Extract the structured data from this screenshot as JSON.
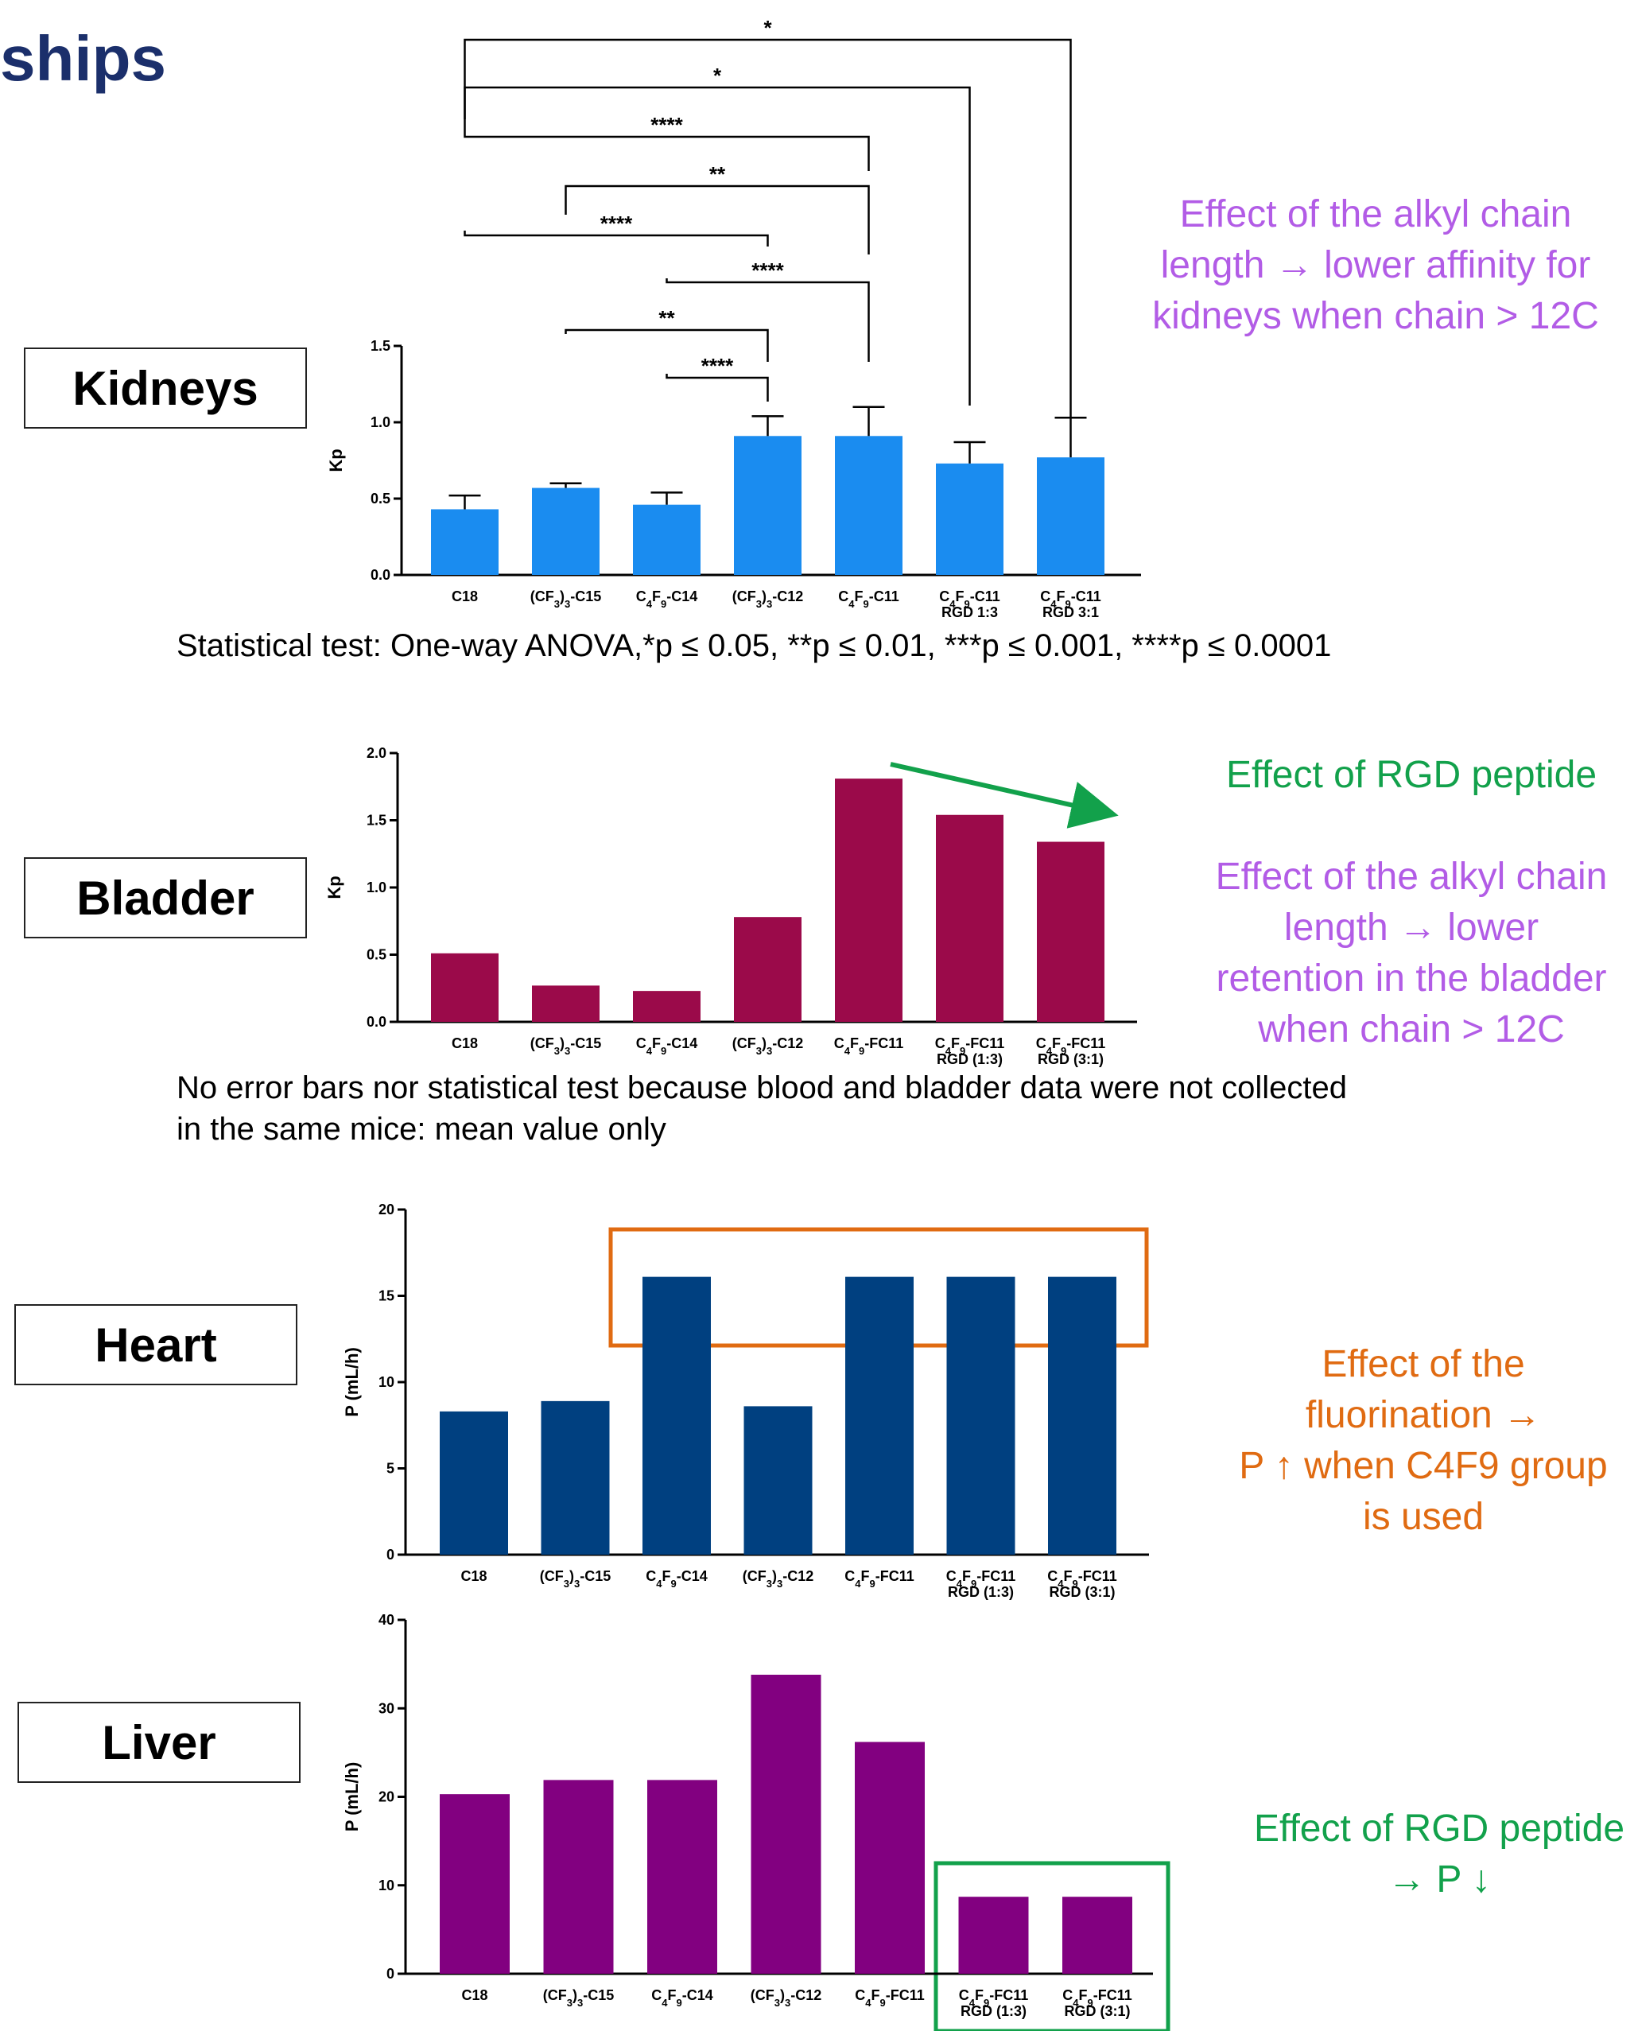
{
  "page": {
    "title": "ships"
  },
  "organs": {
    "kidneys": "Kidneys",
    "bladder": "Bladder",
    "heart": "Heart",
    "liver": "Liver"
  },
  "notes": {
    "stat_test": "Statistical test: One-way ANOVA,*p ≤ 0.05, **p ≤ 0.01, ***p ≤ 0.001, ****p ≤ 0.0001",
    "no_error_line1": "No error bars nor statistical test because blood and bladder data were not collected",
    "no_error_line2": "in the same mice: mean value only"
  },
  "annotations": {
    "kidneys": [
      "Effect of the alkyl chain",
      "length → lower affinity for",
      "kidneys when chain > 12C"
    ],
    "bladder_rgd": "Effect of RGD peptide",
    "bladder_chain": [
      "Effect of the alkyl chain",
      "length → lower",
      "retention in the bladder",
      "when chain > 12C"
    ],
    "heart": [
      "Effect of the",
      "fluorination →",
      "P ↑ when C4F9 group",
      "is used"
    ],
    "liver": [
      "Effect of RGD peptide",
      "→ P ↓"
    ]
  },
  "colors": {
    "kidneys_bar": "#1a8cf0",
    "bladder_bar": "#9b0a4a",
    "heart_bar": "#004080",
    "liver_bar": "#820080",
    "annotation_purple": "#b25ce6",
    "annotation_green": "#12a14b",
    "annotation_orange": "#e06b12",
    "title": "#1b2f6b"
  },
  "chart_data": [
    {
      "id": "kidneys",
      "type": "bar",
      "ylabel": "Kp",
      "ylim": [
        0,
        1.5
      ],
      "yticks": [
        "0.0",
        "0.5",
        "1.0",
        "1.5"
      ],
      "categories": [
        [
          "C18"
        ],
        [
          "(CF3)3-C15"
        ],
        [
          "C4F9-C14"
        ],
        [
          "(CF3)3-C12"
        ],
        [
          "C4F9-C11"
        ],
        [
          "C4F9-C11",
          "RGD 1:3"
        ],
        [
          "C4F9-C11",
          "RGD 3:1"
        ]
      ],
      "values": [
        0.43,
        0.57,
        0.46,
        0.91,
        0.91,
        0.73,
        0.77
      ],
      "errors": [
        0.09,
        0.03,
        0.08,
        0.13,
        0.19,
        0.14,
        0.26
      ],
      "significance": [
        {
          "from": 0,
          "to": 6,
          "label": "*"
        },
        {
          "from": 0,
          "to": 5,
          "label": "*"
        },
        {
          "from": 0,
          "to": 4,
          "label": "****"
        },
        {
          "from": 1,
          "to": 4,
          "label": "**"
        },
        {
          "from": 0,
          "to": 3,
          "label": "****"
        },
        {
          "from": 2,
          "to": 4,
          "label": "****"
        },
        {
          "from": 1,
          "to": 3,
          "label": "**"
        },
        {
          "from": 2,
          "to": 3,
          "label": "****"
        }
      ]
    },
    {
      "id": "bladder",
      "type": "bar",
      "ylabel": "Kp",
      "ylim": [
        0,
        2.0
      ],
      "yticks": [
        "0.0",
        "0.5",
        "1.0",
        "1.5",
        "2.0"
      ],
      "categories": [
        [
          "C18"
        ],
        [
          "(CF3)3-C15"
        ],
        [
          "C4F9-C14"
        ],
        [
          "(CF3)3-C12"
        ],
        [
          "C4F9-FC11"
        ],
        [
          "C4F9-FC11",
          "RGD (1:3)"
        ],
        [
          "C4F9-FC11",
          "RGD (3:1)"
        ]
      ],
      "values": [
        0.51,
        0.27,
        0.23,
        0.78,
        1.81,
        1.54,
        1.34
      ]
    },
    {
      "id": "heart",
      "type": "bar",
      "ylabel": "P (mL/h)",
      "ylim": [
        0,
        20
      ],
      "yticks": [
        "0",
        "5",
        "10",
        "15",
        "20"
      ],
      "categories": [
        [
          "C18"
        ],
        [
          "(CF3)3-C15"
        ],
        [
          "C4F9-C14"
        ],
        [
          "(CF3)3-C12"
        ],
        [
          "C4F9-FC11"
        ],
        [
          "C4F9-FC11",
          "RGD (1:3)"
        ],
        [
          "C4F9-FC11",
          "RGD (3:1)"
        ]
      ],
      "values": [
        8.3,
        8.9,
        16.1,
        8.6,
        16.1,
        16.1,
        16.1
      ]
    },
    {
      "id": "liver",
      "type": "bar",
      "ylabel": "P (mL/h)",
      "ylim": [
        0,
        40
      ],
      "yticks": [
        "0",
        "10",
        "20",
        "30",
        "40"
      ],
      "categories": [
        [
          "C18"
        ],
        [
          "(CF3)3-C15"
        ],
        [
          "C4F9-C14"
        ],
        [
          "(CF3)3-C12"
        ],
        [
          "C4F9-FC11"
        ],
        [
          "C4F9-FC11",
          "RGD (1:3)"
        ],
        [
          "C4F9-FC11",
          "RGD (3:1)"
        ]
      ],
      "values": [
        20.3,
        21.9,
        21.9,
        33.8,
        26.2,
        8.7,
        8.7
      ]
    }
  ]
}
